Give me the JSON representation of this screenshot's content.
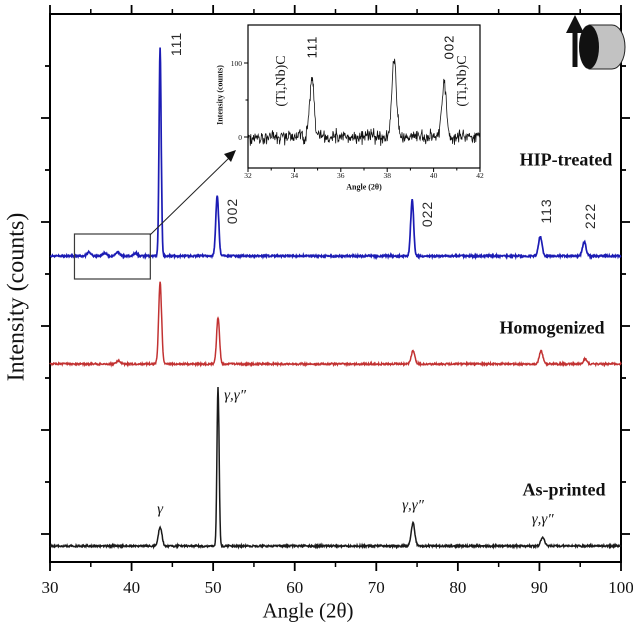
{
  "colors": {
    "hip_treated_blue": "#1c1cb4",
    "homogenized_red": "#c23232",
    "as_printed_black": "#1a1a1a",
    "annotation_gray": "#3a3a3a",
    "cylinder_gray": "#c2c2c2"
  },
  "icons": {
    "build_direction_arrow": "up-arrow-icon",
    "specimen": "horizontal-cylinder-icon"
  },
  "chart_data": {
    "type": "line",
    "title": "",
    "xlabel": "Angle (2θ)",
    "ylabel": "Intensity (counts)",
    "xlim": [
      30,
      100
    ],
    "x_major_ticks": [
      30,
      40,
      50,
      60,
      70,
      80,
      90,
      100
    ],
    "x_minor_ticks": [
      35,
      45,
      55,
      65,
      75,
      85,
      95
    ],
    "y_axis_numeric_labels": false,
    "grid": false,
    "legend_position": "right-inline",
    "series": [
      {
        "name": "HIP-treated",
        "color": "#1c1cb4",
        "peaks": [
          {
            "two_theta": 34.8,
            "rel_intensity": 4,
            "hkl": ""
          },
          {
            "two_theta": 36.7,
            "rel_intensity": 3,
            "hkl": ""
          },
          {
            "two_theta": 38.3,
            "rel_intensity": 4,
            "hkl": ""
          },
          {
            "two_theta": 40.5,
            "rel_intensity": 3,
            "hkl": ""
          },
          {
            "two_theta": 43.5,
            "rel_intensity": 209,
            "hkl": "111"
          },
          {
            "two_theta": 50.5,
            "rel_intensity": 60,
            "hkl": "002"
          },
          {
            "two_theta": 74.4,
            "rel_intensity": 57,
            "hkl": "022"
          },
          {
            "two_theta": 90.1,
            "rel_intensity": 19,
            "hkl": "113"
          },
          {
            "two_theta": 95.5,
            "rel_intensity": 14,
            "hkl": "222"
          }
        ]
      },
      {
        "name": "Homogenized",
        "color": "#c23232",
        "peaks": [
          {
            "two_theta": 38.4,
            "rel_intensity": 3,
            "hkl": ""
          },
          {
            "two_theta": 43.5,
            "rel_intensity": 82,
            "hkl": ""
          },
          {
            "two_theta": 50.6,
            "rel_intensity": 46,
            "hkl": ""
          },
          {
            "two_theta": 74.5,
            "rel_intensity": 13,
            "hkl": ""
          },
          {
            "two_theta": 90.2,
            "rel_intensity": 13,
            "hkl": ""
          },
          {
            "two_theta": 95.6,
            "rel_intensity": 5,
            "hkl": ""
          }
        ]
      },
      {
        "name": "As-printed",
        "color": "#1a1a1a",
        "peaks": [
          {
            "two_theta": 43.5,
            "rel_intensity": 19,
            "hkl": "γ"
          },
          {
            "two_theta": 50.6,
            "rel_intensity": 159,
            "hkl": "γ,γ″"
          },
          {
            "two_theta": 74.5,
            "rel_intensity": 23,
            "hkl": "γ,γ″"
          },
          {
            "two_theta": 90.4,
            "rel_intensity": 9,
            "hkl": "γ,γ″"
          }
        ]
      }
    ],
    "zoom_region_two_theta": [
      33,
      42.3
    ],
    "inset": {
      "xlabel": "Angle (2θ)",
      "ylabel": "Intensity (counts)",
      "xlim": [
        32,
        42
      ],
      "x_major_ticks": [
        32,
        34,
        36,
        38,
        40,
        42
      ],
      "x_minor_ticks": [
        33,
        35,
        37,
        39,
        41
      ],
      "y_ticks": [
        0,
        100
      ],
      "noise_band_counts": [
        -14,
        15
      ],
      "peaks": [
        {
          "two_theta": 34.75,
          "intensity_counts": 77
        },
        {
          "two_theta": 38.3,
          "intensity_counts": 100
        },
        {
          "two_theta": 40.45,
          "intensity_counts": 73
        }
      ],
      "labels": [
        {
          "text": "(Ti,Nb)C",
          "two_theta": 33.45,
          "style": "serif"
        },
        {
          "text": "111",
          "two_theta": 34.78,
          "style": "sans"
        },
        {
          "text": "002",
          "two_theta": 40.66,
          "style": "sans"
        },
        {
          "text": "(Ti,Nb)C",
          "two_theta": 41.25,
          "style": "serif"
        }
      ]
    }
  }
}
